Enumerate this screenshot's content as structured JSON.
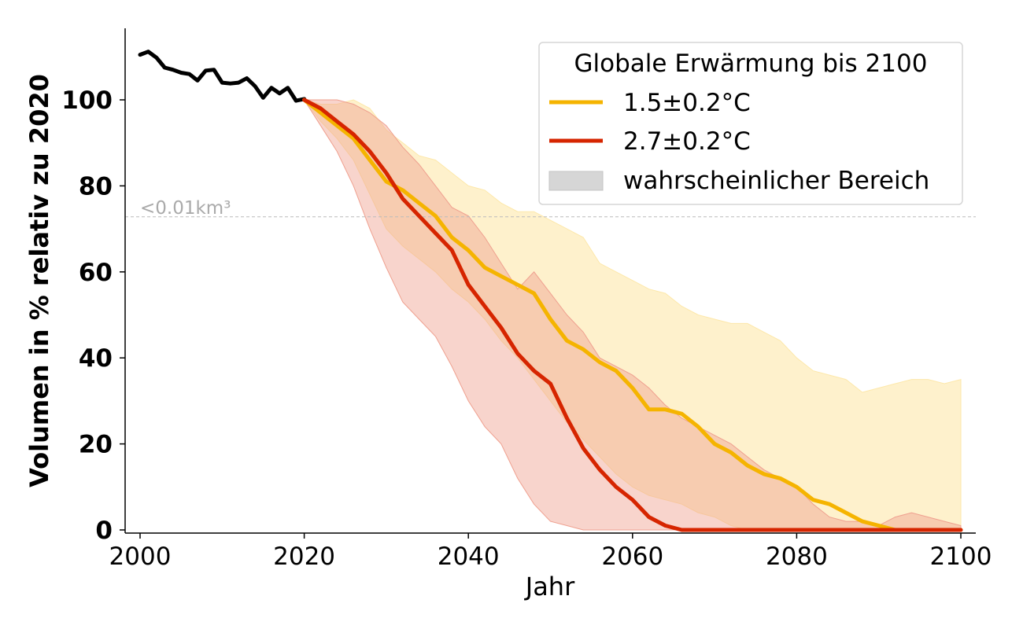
{
  "chart_data": {
    "type": "line",
    "xlabel": "Jahr",
    "ylabel": "Volumen in % relativ zu 2020",
    "xlim": [
      1998,
      2102
    ],
    "ylim": [
      -1,
      117
    ],
    "xticks": [
      2000,
      2020,
      2040,
      2060,
      2080,
      2100
    ],
    "yticks": [
      0,
      20,
      40,
      60,
      80,
      100
    ],
    "grid": false,
    "legend_position": "top-right",
    "legend_title": "Globale Erwärmung bis 2100",
    "legend_items": [
      "1.5±0.2°C",
      "2.7±0.2°C",
      "wahrscheinlicher Bereich"
    ],
    "threshold": {
      "y": 72.8,
      "label": "<0.01km³",
      "color": "#bbbbbb"
    },
    "historical": {
      "color": "#000000",
      "x": [
        2000,
        2001,
        2002,
        2003,
        2004,
        2005,
        2006,
        2007,
        2008,
        2009,
        2010,
        2011,
        2012,
        2013,
        2014,
        2015,
        2016,
        2017,
        2018,
        2019,
        2020
      ],
      "y": [
        110.5,
        111.2,
        109.8,
        107.5,
        107.0,
        106.3,
        106.0,
        104.5,
        106.8,
        107.0,
        104.0,
        103.8,
        104.0,
        105.0,
        103.2,
        100.5,
        102.8,
        101.5,
        102.8,
        99.8,
        100.2
      ]
    },
    "series": [
      {
        "name": "1.5±0.2°C",
        "color": "#f5b400",
        "band_color": "#fde8aa",
        "x": [
          2020,
          2022,
          2024,
          2026,
          2028,
          2030,
          2032,
          2034,
          2036,
          2038,
          2040,
          2042,
          2044,
          2046,
          2048,
          2050,
          2052,
          2054,
          2056,
          2058,
          2060,
          2062,
          2064,
          2066,
          2068,
          2070,
          2072,
          2074,
          2076,
          2078,
          2080,
          2082,
          2084,
          2086,
          2088,
          2090,
          2092,
          2094,
          2096,
          2098,
          2100
        ],
        "y": [
          100,
          97,
          94,
          91,
          86,
          81,
          79,
          76,
          73,
          68,
          65,
          61,
          59,
          57,
          55,
          49,
          44,
          42,
          39,
          37,
          33,
          28,
          28,
          27,
          24,
          20,
          18,
          15,
          13,
          12,
          10,
          7,
          6,
          4,
          2,
          1,
          0,
          0,
          0,
          0,
          0
        ],
        "lower": [
          100,
          95,
          91,
          86,
          78,
          70,
          66,
          63,
          60,
          56,
          53,
          49,
          44,
          40,
          35,
          30,
          25,
          21,
          17,
          13,
          10,
          8,
          7,
          6,
          4,
          3,
          1,
          0,
          0,
          0,
          0,
          0,
          0,
          0,
          0,
          0,
          0,
          0,
          0,
          0,
          0
        ],
        "upper": [
          100,
          99,
          99,
          100,
          98,
          93,
          90,
          87,
          86,
          83,
          80,
          79,
          76,
          74,
          74,
          72,
          70,
          68,
          62,
          60,
          58,
          56,
          55,
          52,
          50,
          49,
          48,
          48,
          46,
          44,
          40,
          37,
          36,
          35,
          32,
          33,
          34,
          35,
          35,
          34,
          35
        ]
      },
      {
        "name": "2.7±0.2°C",
        "color": "#d62500",
        "band_color": "#efa08f",
        "x": [
          2020,
          2022,
          2024,
          2026,
          2028,
          2030,
          2032,
          2034,
          2036,
          2038,
          2040,
          2042,
          2044,
          2046,
          2048,
          2050,
          2052,
          2054,
          2056,
          2058,
          2060,
          2062,
          2064,
          2066,
          2068,
          2070,
          2072,
          2074,
          2076,
          2078,
          2080,
          2082,
          2084,
          2086,
          2088,
          2090,
          2092,
          2094,
          2096,
          2098,
          2100
        ],
        "y": [
          100,
          98,
          95,
          92,
          88,
          83,
          77,
          73,
          69,
          65,
          57,
          52,
          47,
          41,
          37,
          34,
          26,
          19,
          14,
          10,
          7,
          3,
          1,
          0,
          0,
          0,
          0,
          0,
          0,
          0,
          0,
          0,
          0,
          0,
          0,
          0,
          0,
          0,
          0,
          0,
          0
        ],
        "lower": [
          100,
          94,
          88,
          80,
          70,
          61,
          53,
          49,
          45,
          38,
          30,
          24,
          20,
          12,
          6,
          2,
          1,
          0,
          0,
          0,
          0,
          0,
          0,
          0,
          0,
          0,
          0,
          0,
          0,
          0,
          0,
          0,
          0,
          0,
          0,
          0,
          0,
          0,
          0,
          0,
          0
        ],
        "upper": [
          100,
          100,
          100,
          99,
          97,
          94,
          89,
          85,
          80,
          75,
          73,
          68,
          62,
          56,
          60,
          55,
          50,
          46,
          40,
          38,
          36,
          33,
          29,
          26,
          24,
          22,
          20,
          17,
          14,
          12,
          10,
          6,
          3,
          2,
          2,
          1,
          3,
          4,
          3,
          2,
          1
        ]
      }
    ]
  }
}
